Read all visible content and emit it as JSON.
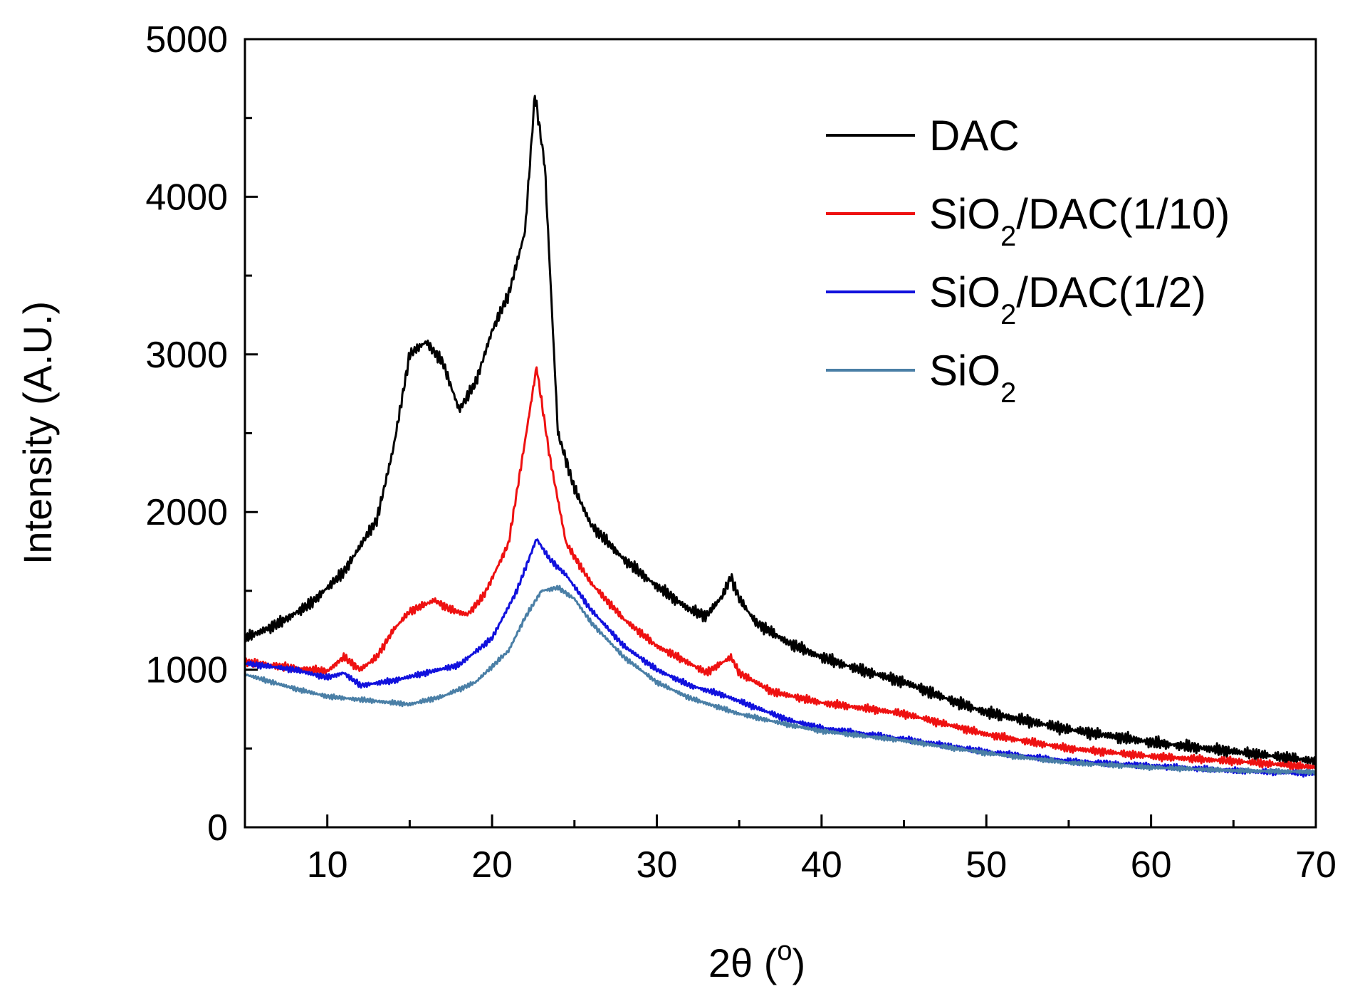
{
  "chart_data": {
    "type": "line",
    "title": "",
    "xlabel": {
      "main": "2θ (",
      "sup": "o",
      "end": ")"
    },
    "ylabel": "Intensity (A.U.)",
    "xlim": [
      5,
      70
    ],
    "ylim": [
      0,
      5000
    ],
    "x_major_ticks": [
      10,
      20,
      30,
      40,
      50,
      60,
      70
    ],
    "x_tick_labels": [
      "10",
      "20",
      "30",
      "40",
      "50",
      "60",
      "70"
    ],
    "y_major_ticks": [
      0,
      1000,
      2000,
      3000,
      4000,
      5000
    ],
    "y_tick_labels": [
      "0",
      "1000",
      "2000",
      "3000",
      "4000",
      "5000"
    ],
    "grid": false,
    "legend_position": "top-right",
    "series": [
      {
        "name": "DAC",
        "label_parts": {
          "main": "DAC",
          "sub": "",
          "rest": ""
        },
        "color": "#000000",
        "noise": 45,
        "points": [
          [
            5,
            1200
          ],
          [
            7,
            1290
          ],
          [
            9,
            1420
          ],
          [
            11,
            1620
          ],
          [
            13,
            1950
          ],
          [
            14,
            2400
          ],
          [
            15,
            3000
          ],
          [
            16,
            3080
          ],
          [
            17,
            2950
          ],
          [
            18,
            2650
          ],
          [
            19,
            2820
          ],
          [
            20,
            3150
          ],
          [
            21,
            3380
          ],
          [
            22,
            3780
          ],
          [
            22.6,
            4650
          ],
          [
            23.2,
            4200
          ],
          [
            24,
            2500
          ],
          [
            25,
            2150
          ],
          [
            26,
            1920
          ],
          [
            28,
            1700
          ],
          [
            30,
            1530
          ],
          [
            32,
            1380
          ],
          [
            33,
            1340
          ],
          [
            34,
            1470
          ],
          [
            34.5,
            1590
          ],
          [
            35,
            1450
          ],
          [
            36,
            1300
          ],
          [
            38,
            1170
          ],
          [
            40,
            1080
          ],
          [
            42,
            1010
          ],
          [
            45,
            920
          ],
          [
            48,
            800
          ],
          [
            50,
            730
          ],
          [
            55,
            620
          ],
          [
            60,
            540
          ],
          [
            65,
            480
          ],
          [
            70,
            420
          ]
        ]
      },
      {
        "name": "SiO2/DAC(1/10)",
        "label_parts": {
          "main": "SiO",
          "sub": "2",
          "rest": "/DAC(1/10)"
        },
        "color": "#ee1111",
        "noise": 30,
        "points": [
          [
            5,
            1050
          ],
          [
            8,
            1010
          ],
          [
            10,
            990
          ],
          [
            11,
            1080
          ],
          [
            12,
            1000
          ],
          [
            13,
            1080
          ],
          [
            14,
            1250
          ],
          [
            15,
            1370
          ],
          [
            16.5,
            1440
          ],
          [
            17.5,
            1380
          ],
          [
            18.5,
            1350
          ],
          [
            19.5,
            1470
          ],
          [
            21,
            1800
          ],
          [
            22,
            2450
          ],
          [
            22.7,
            2920
          ],
          [
            23.5,
            2350
          ],
          [
            24.5,
            1800
          ],
          [
            26,
            1550
          ],
          [
            28,
            1320
          ],
          [
            30,
            1150
          ],
          [
            32,
            1040
          ],
          [
            33,
            980
          ],
          [
            34.5,
            1080
          ],
          [
            35,
            980
          ],
          [
            37,
            860
          ],
          [
            40,
            790
          ],
          [
            43,
            750
          ],
          [
            45,
            720
          ],
          [
            50,
            590
          ],
          [
            55,
            500
          ],
          [
            60,
            450
          ],
          [
            65,
            420
          ],
          [
            70,
            380
          ]
        ]
      },
      {
        "name": "SiO2/DAC(1/2)",
        "label_parts": {
          "main": "SiO",
          "sub": "2",
          "rest": "/DAC(1/2)"
        },
        "color": "#1111dd",
        "noise": 22,
        "points": [
          [
            5,
            1040
          ],
          [
            8,
            1000
          ],
          [
            10,
            950
          ],
          [
            11,
            980
          ],
          [
            12,
            900
          ],
          [
            14,
            930
          ],
          [
            16,
            980
          ],
          [
            18,
            1030
          ],
          [
            20,
            1200
          ],
          [
            21.5,
            1500
          ],
          [
            22.7,
            1830
          ],
          [
            23.5,
            1700
          ],
          [
            24.5,
            1600
          ],
          [
            26,
            1380
          ],
          [
            28,
            1150
          ],
          [
            30,
            1000
          ],
          [
            32,
            900
          ],
          [
            34,
            840
          ],
          [
            36,
            760
          ],
          [
            38,
            680
          ],
          [
            40,
            630
          ],
          [
            45,
            560
          ],
          [
            50,
            480
          ],
          [
            55,
            420
          ],
          [
            60,
            390
          ],
          [
            65,
            360
          ],
          [
            70,
            340
          ]
        ]
      },
      {
        "name": "SiO2",
        "label_parts": {
          "main": "SiO",
          "sub": "2",
          "rest": ""
        },
        "color": "#4a7fa6",
        "noise": 18,
        "points": [
          [
            5,
            970
          ],
          [
            8,
            880
          ],
          [
            10,
            830
          ],
          [
            12,
            810
          ],
          [
            14,
            790
          ],
          [
            15,
            780
          ],
          [
            17,
            830
          ],
          [
            19,
            920
          ],
          [
            21,
            1120
          ],
          [
            22,
            1330
          ],
          [
            23,
            1500
          ],
          [
            24,
            1520
          ],
          [
            25,
            1450
          ],
          [
            26,
            1300
          ],
          [
            28,
            1080
          ],
          [
            30,
            920
          ],
          [
            32,
            820
          ],
          [
            35,
            720
          ],
          [
            38,
            650
          ],
          [
            40,
            610
          ],
          [
            45,
            550
          ],
          [
            50,
            470
          ],
          [
            55,
            410
          ],
          [
            60,
            380
          ],
          [
            65,
            360
          ],
          [
            70,
            350
          ]
        ]
      }
    ]
  }
}
